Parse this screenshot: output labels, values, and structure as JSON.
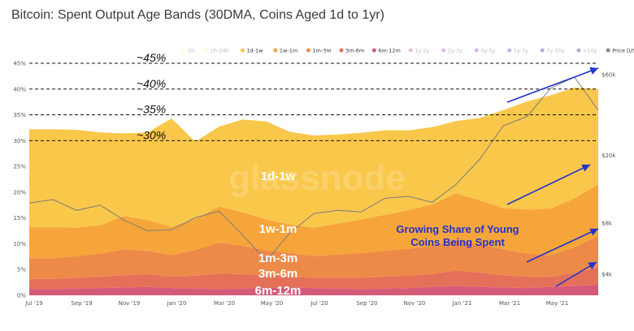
{
  "title": "Bitcoin: Spent Output Age Bands (30DMA, Coins Aged 1d to 1yr)",
  "chart_data": {
    "type": "area",
    "stacked": true,
    "legend_position": "top-right",
    "legend": [
      {
        "label": "1h",
        "color": "#fff3a6",
        "active": false
      },
      {
        "label": "1h-24h",
        "color": "#fde68a",
        "active": false
      },
      {
        "label": "1d-1w",
        "color": "#f9c74a",
        "active": true
      },
      {
        "label": "1w-1m",
        "color": "#f6a53a",
        "active": true
      },
      {
        "label": "1m-3m",
        "color": "#ee8a47",
        "active": true
      },
      {
        "label": "3m-6m",
        "color": "#e5705a",
        "active": true
      },
      {
        "label": "6m-12m",
        "color": "#d65a78",
        "active": true
      },
      {
        "label": "1y-2y",
        "color": "#c04d9c",
        "active": false
      },
      {
        "label": "2y-3y",
        "color": "#9b3fb0",
        "active": false
      },
      {
        "label": "3y-5y",
        "color": "#7a2fb5",
        "active": false
      },
      {
        "label": "5y-7y",
        "color": "#5b22a8",
        "active": false
      },
      {
        "label": "7y-10y",
        "color": "#3d1790",
        "active": false
      },
      {
        "label": ">10y",
        "color": "#241070",
        "active": false
      },
      {
        "label": "Price [USD]",
        "color": "#888888",
        "active": true
      }
    ],
    "x_ticks": [
      "Jul '19",
      "Sep '19",
      "Nov '19",
      "Jan '20",
      "Mar '20",
      "May '20",
      "Jul '20",
      "Sep '20",
      "Nov '20",
      "Jan '21",
      "Mar '21",
      "May '21"
    ],
    "y_left_ticks": [
      "0%",
      "5%",
      "10%",
      "15%",
      "20%",
      "25%",
      "30%",
      "35%",
      "40%",
      "45%"
    ],
    "y_left_range": [
      0,
      0.45
    ],
    "y_right_ticks": [
      "$4k",
      "$8k",
      "$20k",
      "$60k"
    ],
    "y_right_scale": "log",
    "x": [
      0,
      1,
      2,
      3,
      4,
      5,
      6,
      7,
      8,
      9,
      10,
      11,
      12,
      13,
      14,
      15,
      16,
      17,
      18,
      19,
      20,
      21,
      22,
      23,
      24
    ],
    "series": [
      {
        "name": "6m-12m",
        "color": "#d65a78",
        "values": [
          0.012,
          0.012,
          0.013,
          0.014,
          0.015,
          0.016,
          0.014,
          0.013,
          0.012,
          0.013,
          0.014,
          0.015,
          0.014,
          0.013,
          0.012,
          0.013,
          0.014,
          0.016,
          0.018,
          0.016,
          0.015,
          0.014,
          0.016,
          0.018,
          0.02
        ]
      },
      {
        "name": "3m-6m",
        "color": "#e5705a",
        "values": [
          0.02,
          0.02,
          0.021,
          0.022,
          0.024,
          0.025,
          0.022,
          0.025,
          0.03,
          0.028,
          0.025,
          0.022,
          0.02,
          0.021,
          0.022,
          0.023,
          0.024,
          0.025,
          0.03,
          0.028,
          0.024,
          0.022,
          0.02,
          0.025,
          0.035
        ]
      },
      {
        "name": "1m-3m",
        "color": "#ee8a47",
        "values": [
          0.04,
          0.04,
          0.042,
          0.045,
          0.05,
          0.045,
          0.042,
          0.05,
          0.06,
          0.055,
          0.048,
          0.045,
          0.042,
          0.045,
          0.048,
          0.05,
          0.052,
          0.055,
          0.06,
          0.055,
          0.05,
          0.045,
          0.042,
          0.05,
          0.06
        ]
      },
      {
        "name": "1w-1m",
        "color": "#f6a53a",
        "values": [
          0.06,
          0.06,
          0.055,
          0.055,
          0.065,
          0.06,
          0.055,
          0.06,
          0.07,
          0.065,
          0.06,
          0.055,
          0.055,
          0.06,
          0.065,
          0.07,
          0.075,
          0.08,
          0.09,
          0.085,
          0.08,
          0.085,
          0.09,
          0.095,
          0.1
        ]
      },
      {
        "name": "1d-1w",
        "color": "#f9c74a",
        "values": [
          0.19,
          0.19,
          0.19,
          0.18,
          0.16,
          0.17,
          0.21,
          0.15,
          0.155,
          0.18,
          0.19,
          0.18,
          0.179,
          0.173,
          0.168,
          0.164,
          0.155,
          0.15,
          0.14,
          0.16,
          0.19,
          0.21,
          0.22,
          0.215,
          0.185
        ]
      }
    ],
    "price": [
      10500,
      11000,
      9500,
      10200,
      8300,
      7200,
      7300,
      8600,
      9400,
      6800,
      4800,
      7000,
      9100,
      9500,
      9300,
      11200,
      11500,
      10600,
      13500,
      19000,
      30000,
      34000,
      50000,
      58000,
      37000
    ],
    "reference_lines": [
      {
        "value": 0.45,
        "label": "~45%"
      },
      {
        "value": 0.4,
        "label": "~40%"
      },
      {
        "value": 0.35,
        "label": "~35%"
      },
      {
        "value": 0.3,
        "label": "~30%"
      }
    ],
    "band_labels": [
      "1d-1w",
      "1w-1m",
      "1m-3m",
      "3m-6m",
      "6m-12m"
    ],
    "annotation": [
      "Growing Share of Young",
      "Coins Being Spent"
    ],
    "watermark": "glassnode",
    "arrow_color": "#2233cc"
  }
}
